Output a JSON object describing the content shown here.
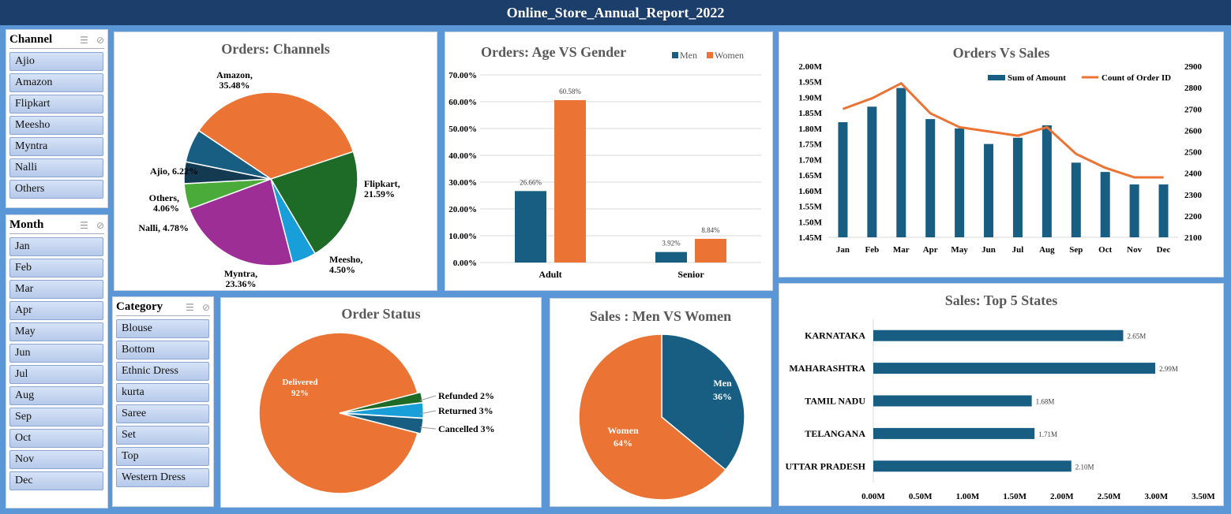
{
  "title": "Online_Store_Annual_Report_2022",
  "slicers": {
    "channel": {
      "title": "Channel",
      "items": [
        "Ajio",
        "Amazon",
        "Flipkart",
        "Meesho",
        "Myntra",
        "Nalli",
        "Others"
      ]
    },
    "month": {
      "title": "Month",
      "items": [
        "Jan",
        "Feb",
        "Mar",
        "Apr",
        "May",
        "Jun",
        "Jul",
        "Aug",
        "Sep",
        "Oct",
        "Nov",
        "Dec"
      ]
    },
    "category": {
      "title": "Category",
      "items": [
        "Blouse",
        "Bottom",
        "Ethnic Dress",
        "kurta",
        "Saree",
        "Set",
        "Top",
        "Western Dress"
      ]
    }
  },
  "colors": {
    "orange": "#eb7333",
    "blue": "#175e82",
    "green": "#1d6b26",
    "purple": "#9d2e96",
    "lightgreen": "#4aaa3a",
    "darkblue": "#143a52",
    "cyan": "#189ed8"
  },
  "chart_data": [
    {
      "id": "channels",
      "type": "pie",
      "title": "Orders: Channels",
      "slices": [
        {
          "label": "Amazon",
          "value": 35.48,
          "text": "Amazon, 35.48%",
          "color": "#eb7333"
        },
        {
          "label": "Flipkart",
          "value": 21.59,
          "text": "Flipkart, 21.59%",
          "color": "#1d6b26"
        },
        {
          "label": "Meesho",
          "value": 4.5,
          "text": "Meesho, 4.50%",
          "color": "#189ed8"
        },
        {
          "label": "Myntra",
          "value": 23.36,
          "text": "Myntra, 23.36%",
          "color": "#9d2e96"
        },
        {
          "label": "Nalli",
          "value": 4.78,
          "text": "Nalli, 4.78%",
          "color": "#4aaa3a"
        },
        {
          "label": "Others",
          "value": 4.06,
          "text": "Others, 4.06%",
          "color": "#143a52"
        },
        {
          "label": "Ajio",
          "value": 6.22,
          "text": "Ajio, 6.22%",
          "color": "#175e82"
        }
      ]
    },
    {
      "id": "age_gender",
      "type": "bar",
      "title": "Orders: Age VS Gender",
      "categories": [
        "Adult",
        "Senior"
      ],
      "series": [
        {
          "name": "Men",
          "values": [
            26.66,
            3.92
          ],
          "labels": [
            "26.66%",
            "3.92%"
          ],
          "color": "#175e82"
        },
        {
          "name": "Women",
          "values": [
            60.58,
            8.84
          ],
          "labels": [
            "60.58%",
            "8.84%"
          ],
          "color": "#eb7333"
        }
      ],
      "ylim": [
        0,
        70
      ],
      "yticks": [
        "0.00%",
        "10.00%",
        "20.00%",
        "30.00%",
        "40.00%",
        "50.00%",
        "60.00%",
        "70.00%"
      ]
    },
    {
      "id": "orders_sales",
      "type": "bar",
      "title": "Orders Vs Sales",
      "categories": [
        "Jan",
        "Feb",
        "Mar",
        "Apr",
        "May",
        "Jun",
        "Jul",
        "Aug",
        "Sep",
        "Oct",
        "Nov",
        "Dec"
      ],
      "series": [
        {
          "name": "Sum of Amount",
          "type": "bar",
          "axis": "left",
          "values": [
            1.82,
            1.87,
            1.93,
            1.83,
            1.8,
            1.75,
            1.77,
            1.81,
            1.69,
            1.66,
            1.62,
            1.62
          ],
          "color": "#175e82"
        },
        {
          "name": "Count of Order ID",
          "type": "line",
          "axis": "right",
          "values": [
            2700,
            2750,
            2820,
            2680,
            2615,
            2595,
            2575,
            2615,
            2490,
            2425,
            2380,
            2380
          ],
          "color": "#eb7333"
        }
      ],
      "ylim_left": [
        1.45,
        2.0
      ],
      "yticks_left": [
        "1.45M",
        "1.50M",
        "1.55M",
        "1.60M",
        "1.65M",
        "1.70M",
        "1.75M",
        "1.80M",
        "1.85M",
        "1.90M",
        "1.95M",
        "2.00M"
      ],
      "ylim_right": [
        2100,
        2900
      ],
      "yticks_right": [
        "2100",
        "2200",
        "2300",
        "2400",
        "2500",
        "2600",
        "2700",
        "2800",
        "2900"
      ]
    },
    {
      "id": "order_status",
      "type": "pie",
      "title": "Order Status",
      "slices": [
        {
          "label": "Delivered",
          "value": 92,
          "text": "Delivered 92%",
          "color": "#eb7333"
        },
        {
          "label": "Cancelled",
          "value": 3,
          "text": "Cancelled 3%",
          "color": "#175e82"
        },
        {
          "label": "Returned",
          "value": 3,
          "text": "Returned 3%",
          "color": "#189ed8"
        },
        {
          "label": "Refunded",
          "value": 2,
          "text": "Refunded 2%",
          "color": "#1d6b26"
        }
      ]
    },
    {
      "id": "men_women",
      "type": "pie",
      "title": "Sales : Men VS Women",
      "slices": [
        {
          "label": "Men",
          "value": 36,
          "pct": "36%",
          "color": "#175e82"
        },
        {
          "label": "Women",
          "value": 64,
          "pct": "64%",
          "color": "#eb7333"
        }
      ]
    },
    {
      "id": "top_states",
      "type": "bar",
      "orientation": "horizontal",
      "title": "Sales: Top 5 States",
      "categories": [
        "KARNATAKA",
        "MAHARASHTRA",
        "TAMIL NADU",
        "TELANGANA",
        "UTTAR PRADESH"
      ],
      "values": [
        2.65,
        2.99,
        1.68,
        1.71,
        2.1
      ],
      "labels": [
        "2.65M",
        "2.99M",
        "1.68M",
        "1.71M",
        "2.10M"
      ],
      "xlim": [
        0,
        3.5
      ],
      "xticks": [
        "0.00M",
        "0.50M",
        "1.00M",
        "1.50M",
        "2.00M",
        "2.50M",
        "3.00M",
        "3.50M"
      ],
      "color": "#175e82"
    }
  ]
}
